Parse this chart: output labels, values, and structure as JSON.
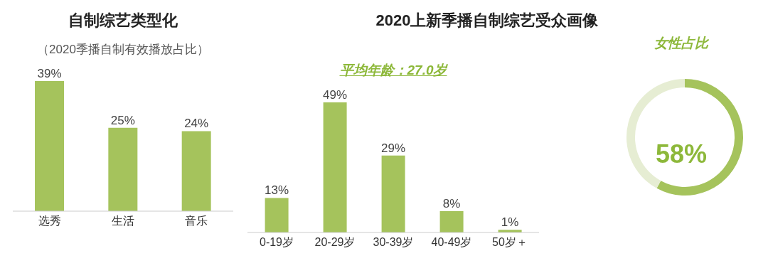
{
  "chart_data": [
    {
      "type": "bar",
      "title": "自制综艺类型化",
      "subtitle": "（2020季播自制有效播放占比）",
      "categories": [
        "选秀",
        "生活",
        "音乐"
      ],
      "values": [
        39,
        25,
        24
      ],
      "color": "#a5c35c",
      "value_labels": [
        "39%",
        "25%",
        "24%"
      ]
    },
    {
      "type": "bar",
      "title": "2020上新季播自制综艺受众画像",
      "subtitle": "平均年龄：27.0岁",
      "categories": [
        "0-19岁",
        "20-29岁",
        "30-39岁",
        "40-49岁",
        "50岁＋"
      ],
      "values": [
        13,
        49,
        29,
        8,
        1
      ],
      "color": "#a5c35c",
      "value_labels": [
        "13%",
        "49%",
        "29%",
        "8%",
        "1%"
      ]
    },
    {
      "type": "donut",
      "title": "女性占比",
      "categories": [
        null,
        null
      ],
      "values": [
        58,
        42
      ],
      "colors": [
        "#a5c35c",
        "#e6edd3"
      ],
      "value_labels": [
        "58%",
        null
      ]
    }
  ]
}
